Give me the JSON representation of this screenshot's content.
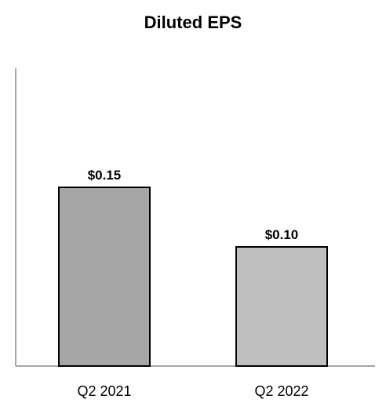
{
  "chart_data": {
    "type": "bar",
    "title": "Diluted EPS",
    "categories": [
      "Q2 2021",
      "Q2 2022"
    ],
    "values": [
      0.15,
      0.1
    ],
    "data_labels": [
      "$0.15",
      "$0.10"
    ],
    "ylim": [
      0,
      0.25
    ],
    "grid": false,
    "legend": "none",
    "colors": {
      "bars": [
        "#a6a6a6",
        "#bfbfbf"
      ],
      "bar_outline": "#000000",
      "axis": "#a6a6a6"
    }
  }
}
